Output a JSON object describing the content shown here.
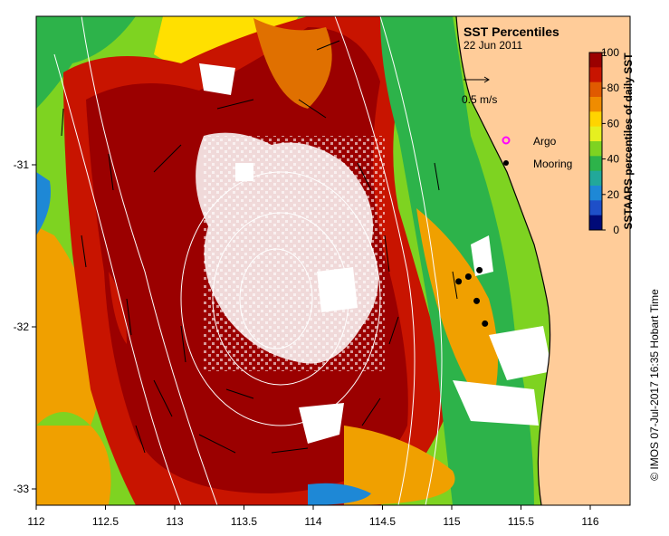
{
  "title": "SST Percentiles",
  "date": "22 Jun 2011",
  "velocity_scale": {
    "label": "0.5 m/s"
  },
  "legend": {
    "argo_label": "Argo",
    "mooring_label": "Mooring",
    "argo_color": "#ff00ff",
    "mooring_color": "#000000"
  },
  "colorbar": {
    "title": "SSTAARS percentiles of daily SST",
    "ticks": [
      "100",
      "80",
      "60",
      "40",
      "20",
      "0"
    ],
    "colors": [
      "#9b0000",
      "#c81400",
      "#e05a00",
      "#f08c00",
      "#ffd400",
      "#e6f020",
      "#7ed321",
      "#2db34a",
      "#22a89a",
      "#1e88d6",
      "#1e4fc8",
      "#000a78"
    ]
  },
  "credit": "© IMOS 07-Jul-2017 16:35 Hobart Time",
  "axes": {
    "x_ticks": [
      "112",
      "112.5",
      "113",
      "113.5",
      "114",
      "114.5",
      "115",
      "115.5",
      "116"
    ],
    "y_ticks": [
      "-31",
      "-32",
      "-33"
    ]
  },
  "colors": {
    "land": "#ffcc99",
    "dark_red": "#9b0000",
    "red": "#c81400",
    "orange": "#e07000",
    "amber": "#f0a000",
    "yellow": "#ffe000",
    "lime": "#b4e61e",
    "green": "#28b428",
    "teal": "#20a0a0",
    "cloud": "#ffffff"
  },
  "moorings": [
    {
      "lon": 115.05,
      "lat": -31.72
    },
    {
      "lon": 115.12,
      "lat": -31.69
    },
    {
      "lon": 115.2,
      "lat": -31.65
    },
    {
      "lon": 115.18,
      "lat": -31.84
    },
    {
      "lon": 115.24,
      "lat": -31.98
    }
  ]
}
